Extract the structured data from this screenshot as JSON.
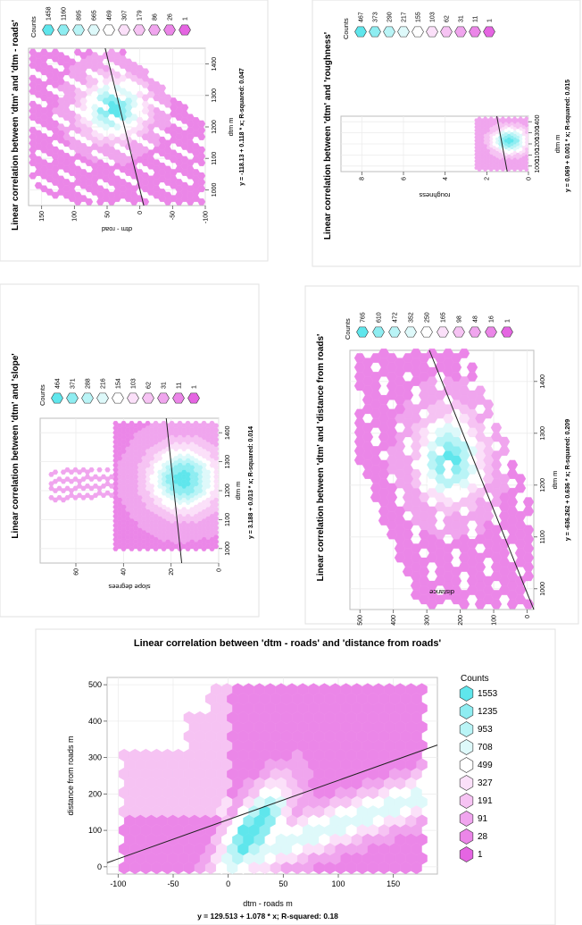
{
  "chart_data": [
    {
      "type": "hexbin",
      "title": "Linear correlation between 'dtm' and 'dtm - roads'",
      "xlabel": "dtm m",
      "ylabel": "dtm - road",
      "xlim": [
        950,
        1450
      ],
      "ylim": [
        -100,
        170
      ],
      "x_ticks": [
        1000,
        1100,
        1200,
        1300,
        1400
      ],
      "y_ticks": [
        -100,
        -50,
        0,
        50,
        100,
        150
      ],
      "equation": "y = -118.13 + 0.118 * x;   R-squared:  0.047",
      "fit": {
        "intercept": -118.13,
        "slope": 0.118
      },
      "legend": {
        "title": "Counts",
        "levels": [
          "1458",
          "1160",
          "895",
          "665",
          "469",
          "307",
          "179",
          "86",
          "26",
          "1"
        ]
      },
      "rotated": "ccw"
    },
    {
      "type": "hexbin",
      "title": "Linear correlation between 'dtm' and 'roughness'",
      "xlabel": "dtm m",
      "ylabel": "roughness",
      "xlim": [
        950,
        1450
      ],
      "ylim": [
        0,
        9
      ],
      "x_ticks": [
        1000,
        1100,
        1200,
        1300,
        1400
      ],
      "y_ticks": [
        0,
        2,
        4,
        6,
        8
      ],
      "equation": "y = 0.069 + 0.001 * x;   R-squared:  0.015",
      "fit": {
        "intercept": 0.069,
        "slope": 0.001
      },
      "legend": {
        "title": "Counts",
        "levels": [
          "467",
          "373",
          "290",
          "217",
          "155",
          "103",
          "62",
          "31",
          "11",
          "1"
        ]
      },
      "rotated": "ccw"
    },
    {
      "type": "hexbin",
      "title": "Linear correlation between 'dtm' and 'slope'",
      "xlabel": "dtm m",
      "ylabel": "slope  degrees",
      "xlim": [
        950,
        1450
      ],
      "ylim": [
        0,
        75
      ],
      "x_ticks": [
        1000,
        1100,
        1200,
        1300,
        1400
      ],
      "y_ticks": [
        0,
        20,
        40,
        60
      ],
      "equation": "y = 3.188 + 0.013 * x;   R-squared:  0.014",
      "fit": {
        "intercept": 3.188,
        "slope": 0.013
      },
      "legend": {
        "title": "Counts",
        "levels": [
          "464",
          "371",
          "288",
          "216",
          "154",
          "103",
          "62",
          "31",
          "11",
          "1"
        ]
      },
      "rotated": "ccw"
    },
    {
      "type": "hexbin",
      "title": "Linear correlation between 'dtm' and 'distance from roads'",
      "xlabel": "dtm m",
      "ylabel": "distance",
      "xlim": [
        960,
        1460
      ],
      "ylim": [
        -20,
        530
      ],
      "x_ticks": [
        1000,
        1100,
        1200,
        1300,
        1400
      ],
      "y_ticks": [
        0,
        100,
        200,
        300,
        400,
        500
      ],
      "equation": "y = -636.262 + 0.636 * x;   R-squared:  0.209",
      "fit": {
        "intercept": -636.262,
        "slope": 0.636
      },
      "legend": {
        "title": "Counts",
        "levels": [
          "765",
          "610",
          "472",
          "352",
          "250",
          "165",
          "98",
          "48",
          "16",
          "1"
        ]
      },
      "rotated": "ccw"
    },
    {
      "type": "hexbin",
      "title": "Linear correlation between 'dtm - roads' and 'distance from roads'",
      "xlabel": "dtm - roads m",
      "ylabel": "distance from roads m",
      "xlim": [
        -110,
        190
      ],
      "ylim": [
        -20,
        520
      ],
      "x_ticks": [
        -100,
        -50,
        0,
        50,
        100,
        150
      ],
      "y_ticks": [
        0,
        100,
        200,
        300,
        400,
        500
      ],
      "equation": "y = 129.513 + 1.078 * x;   R-squared:  0.18",
      "fit": {
        "intercept": 129.513,
        "slope": 1.078
      },
      "legend": {
        "title": "Counts",
        "levels": [
          "1553",
          "1235",
          "953",
          "708",
          "499",
          "327",
          "191",
          "91",
          "28",
          "1"
        ]
      },
      "rotated": "none"
    }
  ],
  "palette": [
    "#5fe6ec",
    "#8eedf1",
    "#b9f4f6",
    "#def9fa",
    "#ffffff",
    "#fbe0f9",
    "#f6c3f3",
    "#f0a5ee",
    "#eb86e8",
    "#e565e2"
  ]
}
